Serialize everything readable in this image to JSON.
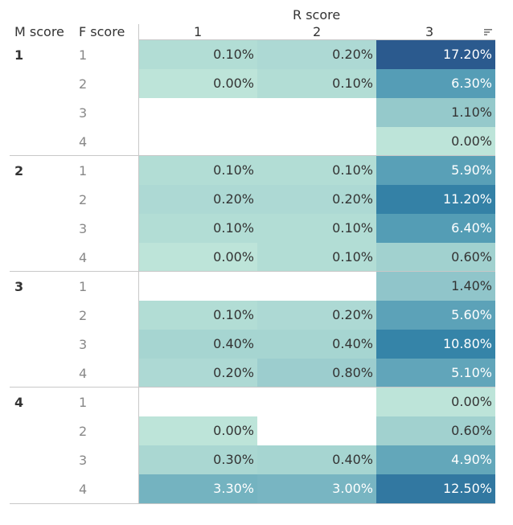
{
  "header": {
    "column_group_title": "R score",
    "row_header_1": "M score",
    "row_header_2": "F score",
    "columns": [
      "1",
      "2",
      "3"
    ]
  },
  "icons": {
    "sort": "sort-descending-icon"
  },
  "colors": {
    "light": "#bde4d9",
    "dark": "#2b5a8e",
    "text_dark": "#333333",
    "text_light": "#ffffff"
  },
  "chart_data": {
    "type": "heatmap",
    "title": "",
    "column_axis_title": "R score",
    "row_axis_titles": [
      "M score",
      "F score"
    ],
    "columns": [
      "1",
      "2",
      "3"
    ],
    "sorted_column": "3",
    "rows": [
      {
        "m": "1",
        "f": "1",
        "values": [
          "0.10%",
          "0.20%",
          "17.20%"
        ]
      },
      {
        "m": "",
        "f": "2",
        "values": [
          "0.00%",
          "0.10%",
          "6.30%"
        ]
      },
      {
        "m": "",
        "f": "3",
        "values": [
          null,
          null,
          "1.10%"
        ]
      },
      {
        "m": "",
        "f": "4",
        "values": [
          null,
          null,
          "0.00%"
        ]
      },
      {
        "m": "2",
        "f": "1",
        "values": [
          "0.10%",
          "0.10%",
          "5.90%"
        ]
      },
      {
        "m": "",
        "f": "2",
        "values": [
          "0.20%",
          "0.20%",
          "11.20%"
        ]
      },
      {
        "m": "",
        "f": "3",
        "values": [
          "0.10%",
          "0.10%",
          "6.40%"
        ]
      },
      {
        "m": "",
        "f": "4",
        "values": [
          "0.00%",
          "0.10%",
          "0.60%"
        ]
      },
      {
        "m": "3",
        "f": "1",
        "values": [
          null,
          null,
          "1.40%"
        ]
      },
      {
        "m": "",
        "f": "2",
        "values": [
          "0.10%",
          "0.20%",
          "5.60%"
        ]
      },
      {
        "m": "",
        "f": "3",
        "values": [
          "0.40%",
          "0.40%",
          "10.80%"
        ]
      },
      {
        "m": "",
        "f": "4",
        "values": [
          "0.20%",
          "0.80%",
          "5.10%"
        ]
      },
      {
        "m": "4",
        "f": "1",
        "values": [
          null,
          null,
          "0.00%"
        ]
      },
      {
        "m": "",
        "f": "2",
        "values": [
          "0.00%",
          null,
          "0.60%"
        ]
      },
      {
        "m": "",
        "f": "3",
        "values": [
          "0.30%",
          "0.40%",
          "4.90%"
        ]
      },
      {
        "m": "",
        "f": "4",
        "values": [
          "3.30%",
          "3.00%",
          "12.50%"
        ]
      }
    ]
  }
}
